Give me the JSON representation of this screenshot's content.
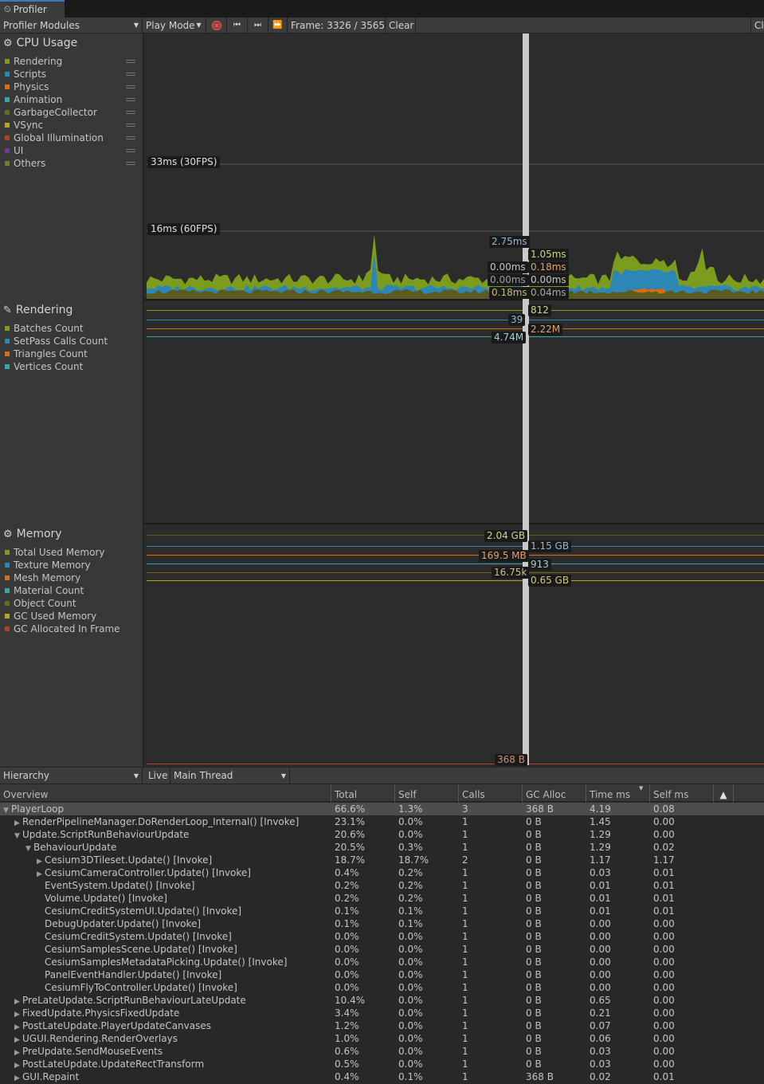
{
  "tab": {
    "title": "Profiler"
  },
  "toolbar": {
    "modules": "Profiler Modules",
    "play_mode": "Play Mode",
    "frame": "Frame: 3326 / 3565",
    "clear": "Clear",
    "cut": "Cl"
  },
  "cpu": {
    "title": "CPU Usage",
    "legend": [
      {
        "label": "Rendering",
        "color": "#7c9c1e"
      },
      {
        "label": "Scripts",
        "color": "#2c86b6"
      },
      {
        "label": "Physics",
        "color": "#d86b14"
      },
      {
        "label": "Animation",
        "color": "#3aa5a8"
      },
      {
        "label": "GarbageCollector",
        "color": "#6a6a1c"
      },
      {
        "label": "VSync",
        "color": "#b8a41e"
      },
      {
        "label": "Global Illumination",
        "color": "#a8442c"
      },
      {
        "label": "UI",
        "color": "#6c3a8e"
      },
      {
        "label": "Others",
        "color": "#7a7a28"
      }
    ],
    "fps30": "33ms (30FPS)",
    "fps60": "16ms (60FPS)",
    "values": {
      "v1": "2.75ms",
      "v2": "1.05ms",
      "v3": "0.00ms",
      "v4": "0.18ms",
      "v5": "0.00ms",
      "v6": "0.00ms",
      "v7": "0.18ms",
      "v8": "0.04ms"
    }
  },
  "rendering": {
    "title": "Rendering",
    "legend": [
      {
        "label": "Batches Count",
        "color": "#7c9c1e"
      },
      {
        "label": "SetPass Calls Count",
        "color": "#2c86b6"
      },
      {
        "label": "Triangles Count",
        "color": "#d86b14"
      },
      {
        "label": "Vertices Count",
        "color": "#3aa5a8"
      }
    ],
    "values": {
      "batches": "812",
      "setpass": "39",
      "triangles": "2.22M",
      "vertices": "4.74M"
    }
  },
  "memory": {
    "title": "Memory",
    "legend": [
      {
        "label": "Total Used Memory",
        "color": "#7c9c1e"
      },
      {
        "label": "Texture Memory",
        "color": "#2c86b6"
      },
      {
        "label": "Mesh Memory",
        "color": "#d86b14"
      },
      {
        "label": "Material Count",
        "color": "#3aa5a8"
      },
      {
        "label": "Object Count",
        "color": "#6a6a1c"
      },
      {
        "label": "GC Used Memory",
        "color": "#b8a41e"
      },
      {
        "label": "GC Allocated In Frame",
        "color": "#a8442c"
      }
    ],
    "values": {
      "total": "2.04 GB",
      "texture": "1.15 GB",
      "mesh": "169.5 MB",
      "material": "913",
      "object": "16.75k",
      "gcused": "0.65 GB",
      "gcalloc": "368 B"
    }
  },
  "lower": {
    "view": "Hierarchy",
    "live": "Live",
    "thread": "Main Thread"
  },
  "columns": {
    "overview": "Overview",
    "total": "Total",
    "self": "Self",
    "calls": "Calls",
    "gc": "GC Alloc",
    "time": "Time ms",
    "selfms": "Self ms"
  },
  "rows": [
    {
      "name": "PlayerLoop",
      "depth": 0,
      "arrow": "down",
      "total": "66.6%",
      "self": "1.3%",
      "calls": "3",
      "gc": "368 B",
      "time": "4.19",
      "selfms": "0.08"
    },
    {
      "name": "RenderPipelineManager.DoRenderLoop_Internal() [Invoke]",
      "depth": 1,
      "arrow": "right",
      "total": "23.1%",
      "self": "0.0%",
      "calls": "1",
      "gc": "0 B",
      "time": "1.45",
      "selfms": "0.00"
    },
    {
      "name": "Update.ScriptRunBehaviourUpdate",
      "depth": 1,
      "arrow": "down",
      "total": "20.6%",
      "self": "0.0%",
      "calls": "1",
      "gc": "0 B",
      "time": "1.29",
      "selfms": "0.00"
    },
    {
      "name": "BehaviourUpdate",
      "depth": 2,
      "arrow": "down",
      "total": "20.5%",
      "self": "0.3%",
      "calls": "1",
      "gc": "0 B",
      "time": "1.29",
      "selfms": "0.02"
    },
    {
      "name": "Cesium3DTileset.Update() [Invoke]",
      "depth": 3,
      "arrow": "right",
      "total": "18.7%",
      "self": "18.7%",
      "calls": "2",
      "gc": "0 B",
      "time": "1.17",
      "selfms": "1.17"
    },
    {
      "name": "CesiumCameraController.Update() [Invoke]",
      "depth": 3,
      "arrow": "right",
      "total": "0.4%",
      "self": "0.2%",
      "calls": "1",
      "gc": "0 B",
      "time": "0.03",
      "selfms": "0.01"
    },
    {
      "name": "EventSystem.Update() [Invoke]",
      "depth": 3,
      "arrow": "",
      "total": "0.2%",
      "self": "0.2%",
      "calls": "1",
      "gc": "0 B",
      "time": "0.01",
      "selfms": "0.01"
    },
    {
      "name": "Volume.Update() [Invoke]",
      "depth": 3,
      "arrow": "",
      "total": "0.2%",
      "self": "0.2%",
      "calls": "1",
      "gc": "0 B",
      "time": "0.01",
      "selfms": "0.01"
    },
    {
      "name": "CesiumCreditSystemUI.Update() [Invoke]",
      "depth": 3,
      "arrow": "",
      "total": "0.1%",
      "self": "0.1%",
      "calls": "1",
      "gc": "0 B",
      "time": "0.01",
      "selfms": "0.01"
    },
    {
      "name": "DebugUpdater.Update() [Invoke]",
      "depth": 3,
      "arrow": "",
      "total": "0.1%",
      "self": "0.1%",
      "calls": "1",
      "gc": "0 B",
      "time": "0.00",
      "selfms": "0.00"
    },
    {
      "name": "CesiumCreditSystem.Update() [Invoke]",
      "depth": 3,
      "arrow": "",
      "total": "0.0%",
      "self": "0.0%",
      "calls": "1",
      "gc": "0 B",
      "time": "0.00",
      "selfms": "0.00"
    },
    {
      "name": "CesiumSamplesScene.Update() [Invoke]",
      "depth": 3,
      "arrow": "",
      "total": "0.0%",
      "self": "0.0%",
      "calls": "1",
      "gc": "0 B",
      "time": "0.00",
      "selfms": "0.00"
    },
    {
      "name": "CesiumSamplesMetadataPicking.Update() [Invoke]",
      "depth": 3,
      "arrow": "",
      "total": "0.0%",
      "self": "0.0%",
      "calls": "1",
      "gc": "0 B",
      "time": "0.00",
      "selfms": "0.00"
    },
    {
      "name": "PanelEventHandler.Update() [Invoke]",
      "depth": 3,
      "arrow": "",
      "total": "0.0%",
      "self": "0.0%",
      "calls": "1",
      "gc": "0 B",
      "time": "0.00",
      "selfms": "0.00"
    },
    {
      "name": "CesiumFlyToController.Update() [Invoke]",
      "depth": 3,
      "arrow": "",
      "total": "0.0%",
      "self": "0.0%",
      "calls": "1",
      "gc": "0 B",
      "time": "0.00",
      "selfms": "0.00"
    },
    {
      "name": "PreLateUpdate.ScriptRunBehaviourLateUpdate",
      "depth": 1,
      "arrow": "right",
      "total": "10.4%",
      "self": "0.0%",
      "calls": "1",
      "gc": "0 B",
      "time": "0.65",
      "selfms": "0.00"
    },
    {
      "name": "FixedUpdate.PhysicsFixedUpdate",
      "depth": 1,
      "arrow": "right",
      "total": "3.4%",
      "self": "0.0%",
      "calls": "1",
      "gc": "0 B",
      "time": "0.21",
      "selfms": "0.00"
    },
    {
      "name": "PostLateUpdate.PlayerUpdateCanvases",
      "depth": 1,
      "arrow": "right",
      "total": "1.2%",
      "self": "0.0%",
      "calls": "1",
      "gc": "0 B",
      "time": "0.07",
      "selfms": "0.00"
    },
    {
      "name": "UGUI.Rendering.RenderOverlays",
      "depth": 1,
      "arrow": "right",
      "total": "1.0%",
      "self": "0.0%",
      "calls": "1",
      "gc": "0 B",
      "time": "0.06",
      "selfms": "0.00"
    },
    {
      "name": "PreUpdate.SendMouseEvents",
      "depth": 1,
      "arrow": "right",
      "total": "0.6%",
      "self": "0.0%",
      "calls": "1",
      "gc": "0 B",
      "time": "0.03",
      "selfms": "0.00"
    },
    {
      "name": "PostLateUpdate.UpdateRectTransform",
      "depth": 1,
      "arrow": "right",
      "total": "0.5%",
      "self": "0.0%",
      "calls": "1",
      "gc": "0 B",
      "time": "0.03",
      "selfms": "0.00"
    },
    {
      "name": "GUI.Repaint",
      "depth": 1,
      "arrow": "right",
      "total": "0.4%",
      "self": "0.1%",
      "calls": "1",
      "gc": "368 B",
      "time": "0.02",
      "selfms": "0.01"
    }
  ]
}
